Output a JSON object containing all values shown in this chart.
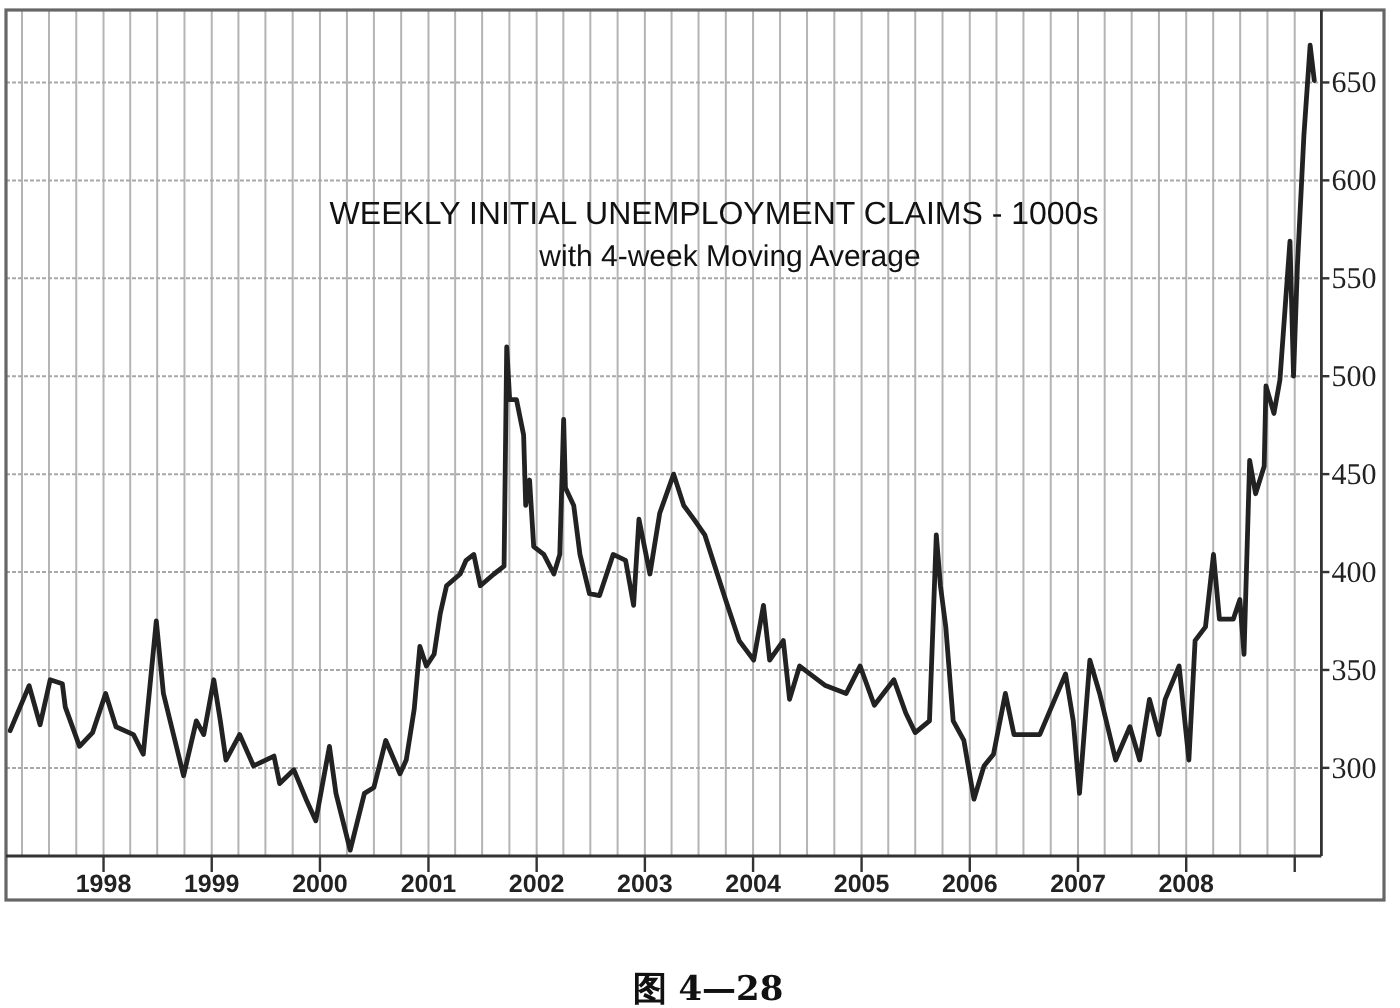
{
  "chart_data": {
    "type": "line",
    "title": "WEEKLY INITIAL UNEMPLOYMENT CLAIMS - 1000s",
    "subtitle": "with 4-week Moving Average",
    "annotations": [
      "图 4—28"
    ],
    "x": [
      "1997-02-20",
      "1997-04-25",
      "1997-06-01",
      "1997-07-05",
      "1997-08-15",
      "1997-08-25",
      "1997-10-12",
      "1997-11-25",
      "1998-01-08",
      "1998-02-12",
      "1998-04-12",
      "1998-05-15",
      "1998-06-28",
      "1998-07-22",
      "1998-09-15",
      "1998-09-28",
      "1998-11-10",
      "1998-12-05",
      "1999-01-08",
      "1999-01-30",
      "1999-02-18",
      "1999-04-05",
      "1999-05-22",
      "1999-07-30",
      "1999-08-18",
      "1999-10-05",
      "1999-11-15",
      "1999-12-18",
      "2000-02-02",
      "2000-02-24",
      "2000-04-12",
      "2000-05-30",
      "2000-07-01",
      "2000-08-10",
      "2000-09-27",
      "2000-10-18",
      "2000-11-14",
      "2000-12-03",
      "2000-12-25",
      "2001-01-20",
      "2001-02-10",
      "2001-03-03",
      "2001-04-18",
      "2001-05-08",
      "2001-06-03",
      "2001-06-25",
      "2001-08-10",
      "2001-09-13",
      "2001-09-22",
      "2001-10-02",
      "2001-10-25",
      "2001-11-18",
      "2001-11-25",
      "2001-12-08",
      "2001-12-22",
      "2002-01-25",
      "2002-02-28",
      "2002-03-20",
      "2002-04-02",
      "2002-04-08",
      "2002-05-06",
      "2002-05-27",
      "2002-06-28",
      "2002-08-01",
      "2002-09-16",
      "2002-10-28",
      "2002-11-24",
      "2002-12-12",
      "2003-01-18",
      "2003-02-20",
      "2003-04-08",
      "2003-05-12",
      "2003-06-15",
      "2003-07-22",
      "2003-08-25",
      "2003-09-30",
      "2003-11-15",
      "2004-01-03",
      "2004-02-05",
      "2004-02-26",
      "2004-04-12",
      "2004-05-03",
      "2004-06-06",
      "2004-09-01",
      "2004-11-10",
      "2004-12-27",
      "2005-02-13",
      "2005-04-20",
      "2005-05-30",
      "2005-07-01",
      "2005-08-18",
      "2005-09-10",
      "2005-09-24",
      "2005-10-12",
      "2005-11-06",
      "2005-12-12",
      "2006-01-15",
      "2006-02-18",
      "2006-03-22",
      "2006-05-01",
      "2006-05-30",
      "2006-08-25",
      "2006-11-20",
      "2006-12-16",
      "2007-01-06",
      "2007-02-10",
      "2007-03-15",
      "2007-05-08",
      "2007-06-25",
      "2007-07-28",
      "2007-08-30",
      "2007-10-01",
      "2007-10-22",
      "2007-12-08",
      "2008-01-10",
      "2008-01-31",
      "2008-03-06",
      "2008-04-02",
      "2008-04-22",
      "2008-06-08",
      "2008-06-30",
      "2008-07-14",
      "2008-08-02",
      "2008-08-22",
      "2008-09-20",
      "2008-09-26",
      "2008-10-23",
      "2008-11-12",
      "2008-12-03",
      "2008-12-16",
      "2008-12-28",
      "2009-01-10",
      "2009-02-01",
      "2009-02-22",
      "2009-03-08"
    ],
    "values": [
      319,
      342,
      322,
      345,
      343,
      331,
      311,
      318,
      338,
      321,
      317,
      307,
      375,
      338,
      304,
      296,
      324,
      317,
      345,
      324,
      304,
      317,
      301,
      306,
      292,
      299,
      284,
      273,
      311,
      287,
      258,
      287,
      290,
      314,
      297,
      304,
      330,
      362,
      352,
      358,
      379,
      393,
      399,
      406,
      409,
      393,
      399,
      403,
      515,
      488,
      488,
      470,
      434,
      447,
      413,
      409,
      399,
      409,
      478,
      443,
      434,
      409,
      389,
      388,
      409,
      406,
      383,
      427,
      399,
      430,
      450,
      434,
      427,
      419,
      403,
      386,
      365,
      355,
      383,
      355,
      365,
      335,
      352,
      342,
      338,
      352,
      332,
      345,
      328,
      318,
      324,
      419,
      393,
      372,
      324,
      314,
      284,
      301,
      307,
      338,
      317,
      317,
      348,
      324,
      287,
      355,
      338,
      304,
      321,
      304,
      335,
      317,
      335,
      352,
      304,
      365,
      372,
      409,
      376,
      376,
      386,
      358,
      457,
      440,
      454,
      495,
      481,
      498,
      542,
      569,
      500,
      556,
      623,
      669,
      651
    ],
    "color": "#222222",
    "xlim": [
      "1997-02-06",
      "2009-04-01"
    ],
    "ylim": [
      255,
      687
    ],
    "xticks": [
      {
        "value": "1997-04",
        "label": null
      },
      {
        "value": "1997-07",
        "label": null
      },
      {
        "value": "1997-10",
        "label": null
      },
      "1998",
      {
        "value": "1998-04",
        "label": null
      },
      {
        "value": "1998-07",
        "label": null
      },
      {
        "value": "1998-10",
        "label": null
      },
      "1999",
      {
        "value": "1999-04",
        "label": null
      },
      {
        "value": "1999-07",
        "label": null
      },
      {
        "value": "1999-10",
        "label": null
      },
      "2000",
      {
        "value": "2000-04",
        "label": null
      },
      {
        "value": "2000-07",
        "label": null
      },
      {
        "value": "2000-10",
        "label": null
      },
      "2001",
      {
        "value": "2001-04",
        "label": null
      },
      {
        "value": "2001-07",
        "label": null
      },
      {
        "value": "2001-10",
        "label": null
      },
      "2002",
      {
        "value": "2002-04",
        "label": null
      },
      {
        "value": "2002-07",
        "label": null
      },
      {
        "value": "2002-10",
        "label": null
      },
      "2003",
      {
        "value": "2003-04",
        "label": null
      },
      {
        "value": "2003-07",
        "label": null
      },
      {
        "value": "2003-10",
        "label": null
      },
      "2004",
      {
        "value": "2004-04",
        "label": null
      },
      {
        "value": "2004-07",
        "label": null
      },
      {
        "value": "2004-10",
        "label": null
      },
      "2005",
      {
        "value": "2005-04",
        "label": null
      },
      {
        "value": "2005-07",
        "label": null
      },
      {
        "value": "2005-10",
        "label": null
      },
      "2006",
      {
        "value": "2006-04",
        "label": null
      },
      {
        "value": "2006-07",
        "label": null
      },
      {
        "value": "2006-10",
        "label": null
      },
      "2007",
      {
        "value": "2007-04",
        "label": null
      },
      {
        "value": "2007-07",
        "label": null
      },
      {
        "value": "2007-10",
        "label": null
      },
      "2008",
      {
        "value": "2008-04",
        "label": null
      },
      {
        "value": "2008-07",
        "label": null
      },
      {
        "value": "2008-10",
        "label": null
      },
      {
        "value": "2009",
        "label": null
      }
    ],
    "yticks": [
      300,
      350,
      400,
      450,
      500,
      550,
      600,
      650
    ],
    "grid": true
  }
}
